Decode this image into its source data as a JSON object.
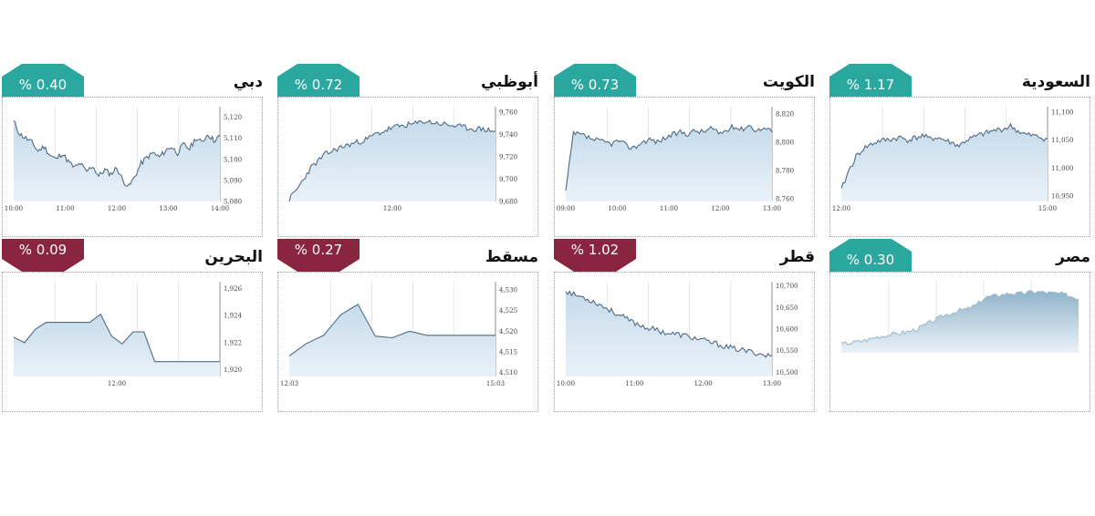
{
  "colors": {
    "up": "#2aa79e",
    "down": "#8a2540",
    "line": "#4f6b85",
    "fill_top": "#c6dbeb",
    "fill_bottom": "#eaf2f8",
    "grid": "#d0d6dc"
  },
  "chart_data": [
    {
      "id": "dubai",
      "type": "area",
      "title": "دبي",
      "change": "% 0.40",
      "direction": "up",
      "xticks": [
        "10:00",
        "11:00",
        "12:00",
        "13:00",
        "14:00"
      ],
      "yticks": [
        "5,120",
        "5,110",
        "5,100",
        "5,090",
        "5,080"
      ],
      "ylim": [
        5080,
        5125
      ],
      "seed": 11,
      "values": [
        5118,
        5112,
        5110,
        5108,
        5104,
        5106,
        5102,
        5100,
        5103,
        5099,
        5096,
        5098,
        5094,
        5097,
        5092,
        5095,
        5093,
        5096,
        5090,
        5087,
        5092,
        5098,
        5101,
        5103,
        5101,
        5104,
        5106,
        5103,
        5107,
        5105,
        5110,
        5108,
        5112,
        5109,
        5111
      ]
    },
    {
      "id": "abudhabi",
      "type": "area",
      "title": "أبوظبي",
      "change": "% 0.72",
      "direction": "up",
      "xticks": [
        "12:00"
      ],
      "yticks": [
        "9,760",
        "9,740",
        "9,720",
        "9,700",
        "9,680"
      ],
      "ylim": [
        9680,
        9765
      ],
      "seed": 23,
      "values": [
        9682,
        9690,
        9700,
        9710,
        9716,
        9722,
        9725,
        9728,
        9730,
        9732,
        9734,
        9736,
        9740,
        9742,
        9745,
        9747,
        9748,
        9749,
        9750,
        9752,
        9751,
        9750,
        9749,
        9748,
        9747,
        9746,
        9745,
        9745,
        9744,
        9743
      ]
    },
    {
      "id": "kuwait",
      "type": "area",
      "title": "الكويت",
      "change": "% 0.73",
      "direction": "up",
      "xticks": [
        "09:00",
        "10:00",
        "11:00",
        "12:00",
        "13:00"
      ],
      "yticks": [
        "8,820",
        "8,800",
        "8,780",
        "8,760"
      ],
      "ylim": [
        8758,
        8825
      ],
      "seed": 37,
      "values": [
        8765,
        8806,
        8805,
        8803,
        8801,
        8800,
        8799,
        8801,
        8797,
        8796,
        8800,
        8802,
        8800,
        8803,
        8805,
        8807,
        8806,
        8808,
        8807,
        8810,
        8806,
        8808,
        8811,
        8809,
        8812,
        8808,
        8810,
        8807
      ]
    },
    {
      "id": "saudi",
      "type": "area",
      "title": "السعودية",
      "change": "% 1.17",
      "direction": "up",
      "xticks": [
        "12:00",
        "15:00"
      ],
      "yticks": [
        "11,100",
        "11,050",
        "11,000",
        "10,950"
      ],
      "ylim": [
        10940,
        11110
      ],
      "seed": 41,
      "values": [
        10960,
        10995,
        11020,
        11035,
        11042,
        11048,
        11050,
        11052,
        11055,
        11050,
        11054,
        11058,
        11052,
        11055,
        11050,
        11045,
        11040,
        11050,
        11055,
        11060,
        11064,
        11068,
        11070,
        11075,
        11066,
        11060,
        11058,
        11055,
        11052
      ]
    },
    {
      "id": "bahrain",
      "type": "area",
      "title": "البحرين",
      "change": "% 0.09",
      "direction": "down",
      "xticks": [
        "12:00"
      ],
      "yticks": [
        "1,926",
        "1,924",
        "1,922",
        "1,920"
      ],
      "ylim": [
        1919.5,
        1926.5
      ],
      "seed": 0,
      "values": [
        1922.4,
        1922.0,
        1923.0,
        1923.5,
        1923.5,
        1923.5,
        1923.5,
        1923.5,
        1924.1,
        1922.5,
        1921.9,
        1922.8,
        1922.8,
        1920.6,
        1920.6,
        1920.6,
        1920.6,
        1920.6,
        1920.6,
        1920.6
      ]
    },
    {
      "id": "muscat",
      "type": "area",
      "title": "مسقط",
      "change": "% 0.27",
      "direction": "down",
      "xticks": [
        "12:03",
        "15:03"
      ],
      "yticks": [
        "4,530",
        "4,525",
        "4,520",
        "4,515",
        "4,510"
      ],
      "ylim": [
        4509,
        4532
      ],
      "seed": 0,
      "values": [
        4514,
        4517,
        4519,
        4524,
        4526.5,
        4518.8,
        4518.4,
        4520.0,
        4519.0,
        4519.0,
        4519.0,
        4519.0,
        4519.0
      ]
    },
    {
      "id": "qatar",
      "type": "area",
      "title": "قطر",
      "change": "% 1.02",
      "direction": "down",
      "xticks": [
        "10:00",
        "11:00",
        "12:00",
        "13:00"
      ],
      "yticks": [
        "10,700",
        "10,650",
        "10,600",
        "10,550",
        "10,500"
      ],
      "ylim": [
        10490,
        10710
      ],
      "seed": 53,
      "values": [
        10690,
        10680,
        10675,
        10668,
        10660,
        10650,
        10640,
        10630,
        10620,
        10612,
        10605,
        10600,
        10595,
        10590,
        10588,
        10585,
        10580,
        10576,
        10570,
        10566,
        10560,
        10555,
        10552,
        10548,
        10545,
        10540,
        10538
      ]
    },
    {
      "id": "egypt",
      "type": "area",
      "title": "مصر",
      "change": "% 0.30",
      "direction": "up",
      "xticks": [],
      "yticks": [],
      "ylim": [
        0,
        100
      ],
      "seed": 67,
      "values": [
        12,
        14,
        16,
        18,
        22,
        24,
        26,
        28,
        30,
        34,
        40,
        46,
        52,
        56,
        60,
        62,
        68,
        78,
        80,
        82,
        84,
        83,
        85,
        86,
        85,
        84,
        83,
        80,
        76
      ]
    }
  ]
}
